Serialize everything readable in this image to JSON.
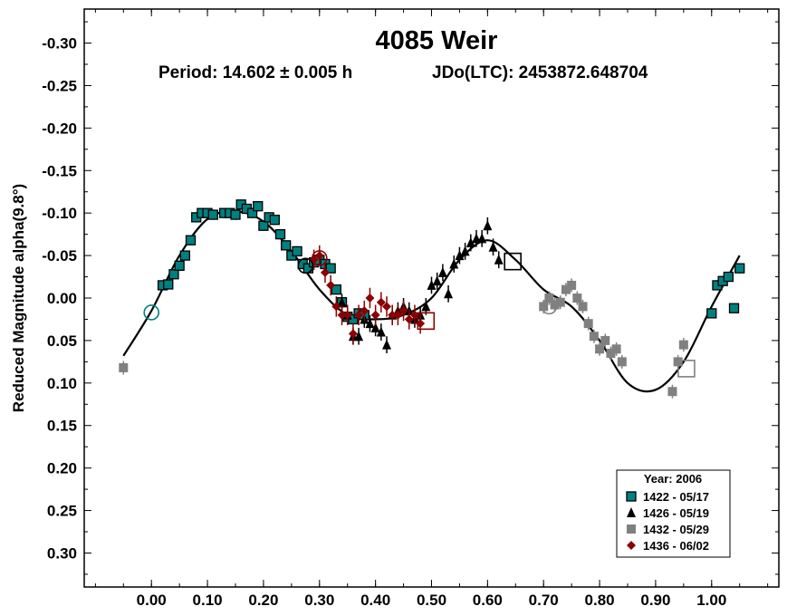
{
  "chart_data": {
    "type": "scatter",
    "title": "4085 Weir",
    "subtitle_period": "Period: 14.602 ± 0.005 h",
    "subtitle_epoch": "JDo(LTC): 2453872.648704",
    "ylabel": "Reduced Magnitude alpha(9.8°)",
    "xlim": [
      -0.12,
      1.12
    ],
    "ylim": [
      -0.34,
      0.34
    ],
    "y_inverted": true,
    "x_ticks": [
      "0.00",
      "0.10",
      "0.20",
      "0.30",
      "0.40",
      "0.50",
      "0.60",
      "0.70",
      "0.80",
      "0.90",
      "1.00"
    ],
    "y_ticks": [
      "-0.30",
      "-0.25",
      "-0.20",
      "-0.15",
      "-0.10",
      "-0.05",
      "0.00",
      "0.05",
      "0.10",
      "0.15",
      "0.20",
      "0.25",
      "0.30"
    ],
    "legend": {
      "title": "Year: 2006",
      "position": "bottom-right",
      "entries": [
        {
          "label": "1422 - 05/17",
          "color": "#008080",
          "marker": "square-outlined"
        },
        {
          "label": "1426 - 05/19",
          "color": "#000000",
          "marker": "triangle"
        },
        {
          "label": "1432 - 05/29",
          "color": "#808080",
          "marker": "square"
        },
        {
          "label": "1436 - 06/02",
          "color": "#8b0000",
          "marker": "diamond"
        }
      ]
    },
    "series": [
      {
        "color": "#008080",
        "marker": "square-outlined",
        "x": [
          1.0,
          1.01,
          1.02,
          1.03,
          1.04,
          1.05,
          0.02,
          0.03,
          0.04,
          0.05,
          0.06,
          0.07,
          0.08,
          0.09,
          0.1,
          0.11,
          0.13,
          0.14,
          0.15,
          0.16,
          0.17,
          0.18,
          0.19,
          0.2,
          0.21,
          0.22,
          0.23,
          0.24,
          0.25,
          0.26,
          0.27,
          0.28,
          0.29,
          0.3,
          0.31,
          0.32,
          0.33,
          0.34,
          0.35,
          0.36,
          0.37,
          0.38
        ],
        "y": [
          0.018,
          -0.015,
          -0.02,
          -0.025,
          0.012,
          -0.035,
          -0.015,
          -0.016,
          -0.028,
          -0.038,
          -0.05,
          -0.068,
          -0.095,
          -0.1,
          -0.1,
          -0.098,
          -0.1,
          -0.1,
          -0.098,
          -0.11,
          -0.105,
          -0.1,
          -0.108,
          -0.085,
          -0.095,
          -0.092,
          -0.075,
          -0.062,
          -0.05,
          -0.055,
          -0.04,
          -0.035,
          -0.042,
          -0.045,
          -0.04,
          -0.035,
          -0.01,
          0.005,
          0.022,
          0.025,
          0.018,
          0.02
        ],
        "yerr": 0.006
      },
      {
        "color": "#000000",
        "marker": "triangle",
        "x": [
          0.34,
          0.35,
          0.36,
          0.37,
          0.38,
          0.39,
          0.4,
          0.41,
          0.42,
          0.43,
          0.44,
          0.45,
          0.46,
          0.47,
          0.48,
          0.49,
          0.5,
          0.51,
          0.52,
          0.53,
          0.54,
          0.55,
          0.56,
          0.57,
          0.58,
          0.59,
          0.6,
          0.61,
          0.62
        ],
        "y": [
          0.005,
          0.02,
          0.045,
          0.045,
          0.025,
          0.03,
          0.035,
          0.04,
          0.055,
          0.02,
          0.015,
          0.01,
          0.015,
          0.025,
          0.02,
          0.01,
          -0.015,
          -0.02,
          -0.03,
          -0.005,
          -0.04,
          -0.05,
          -0.055,
          -0.065,
          -0.07,
          -0.07,
          -0.085,
          -0.06,
          -0.045
        ],
        "yerr": 0.01
      },
      {
        "color": "#808080",
        "marker": "square",
        "x": [
          -0.05,
          0.7,
          0.71,
          0.72,
          0.73,
          0.74,
          0.75,
          0.76,
          0.77,
          0.78,
          0.79,
          0.8,
          0.81,
          0.82,
          0.83,
          0.84,
          0.93,
          0.94,
          0.95
        ],
        "y": [
          0.082,
          0.01,
          0.0,
          0.008,
          0.005,
          -0.01,
          -0.015,
          0.0,
          0.01,
          0.03,
          0.045,
          0.06,
          0.05,
          0.065,
          0.06,
          0.075,
          0.11,
          0.075,
          0.055
        ],
        "yerr": 0.008
      },
      {
        "color": "#8b0000",
        "marker": "diamond",
        "x": [
          0.29,
          0.3,
          0.31,
          0.32,
          0.33,
          0.34,
          0.35,
          0.36,
          0.37,
          0.38,
          0.39,
          0.4,
          0.41,
          0.42,
          0.43,
          0.44,
          0.45,
          0.46,
          0.47,
          0.48
        ],
        "y": [
          -0.045,
          -0.05,
          -0.03,
          -0.015,
          0.01,
          0.02,
          0.02,
          0.042,
          0.02,
          0.015,
          0.0,
          0.02,
          0.005,
          0.01,
          0.02,
          0.02,
          0.015,
          0.025,
          0.02,
          0.03
        ],
        "yerr": 0.012
      }
    ],
    "fit_curve": {
      "color": "#000000",
      "x": [
        -0.05,
        0.0,
        0.05,
        0.1,
        0.15,
        0.2,
        0.25,
        0.3,
        0.35,
        0.4,
        0.45,
        0.5,
        0.55,
        0.6,
        0.65,
        0.7,
        0.75,
        0.8,
        0.85,
        0.9,
        0.95,
        1.0,
        1.05
      ],
      "y": [
        0.068,
        0.015,
        -0.05,
        -0.093,
        -0.102,
        -0.09,
        -0.055,
        -0.01,
        0.02,
        0.025,
        0.02,
        0.0,
        -0.045,
        -0.068,
        -0.045,
        -0.01,
        0.01,
        0.05,
        0.1,
        0.108,
        0.075,
        0.01,
        -0.05
      ]
    },
    "boundary_markers": [
      {
        "x": 0.0,
        "y": 0.017,
        "shape": "circle",
        "color": "#008080"
      },
      {
        "x": 0.275,
        "y": -0.038,
        "shape": "circle",
        "color": "#000000"
      },
      {
        "x": 0.3,
        "y": -0.047,
        "shape": "circle",
        "color": "#8b0000"
      },
      {
        "x": 0.49,
        "y": 0.027,
        "shape": "square",
        "color": "#8b0000"
      },
      {
        "x": 0.645,
        "y": -0.043,
        "shape": "square",
        "color": "#000000"
      },
      {
        "x": 0.71,
        "y": 0.01,
        "shape": "circle",
        "color": "#808080"
      },
      {
        "x": 0.955,
        "y": 0.083,
        "shape": "square",
        "color": "#808080"
      }
    ]
  }
}
